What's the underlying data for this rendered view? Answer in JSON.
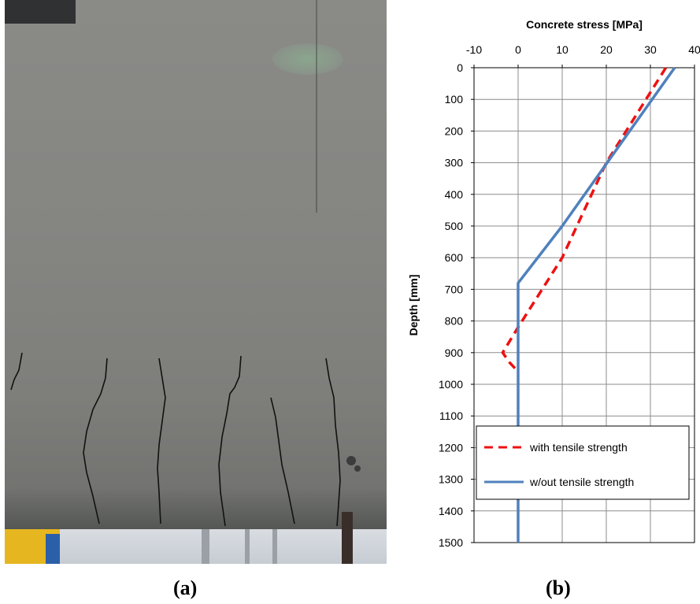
{
  "panels": {
    "a_label": "(a)",
    "b_label": "(b)"
  },
  "chart_data": {
    "type": "line",
    "xlabel": "Concrete stress [MPa]",
    "ylabel": "Depth [mm]",
    "xlim": [
      -10,
      40
    ],
    "ylim": [
      0,
      1500
    ],
    "x_axis_position": "top",
    "y_axis_inverted": true,
    "grid": true,
    "legend_position": "bottom-inside",
    "xticks": [
      "-10",
      "0",
      "10",
      "20",
      "30",
      "40"
    ],
    "yticks": [
      "0",
      "100",
      "200",
      "300",
      "400",
      "500",
      "600",
      "700",
      "800",
      "900",
      "1000",
      "1100",
      "1200",
      "1300",
      "1400",
      "1500"
    ],
    "series": [
      {
        "name": "with tensile strength",
        "color": "#ee1111",
        "style": "dashed",
        "points": [
          [
            33.5,
            0
          ],
          [
            20,
            300
          ],
          [
            10,
            600
          ],
          [
            0,
            820
          ],
          [
            -3.5,
            900
          ],
          [
            -2,
            930
          ],
          [
            0,
            960
          ]
        ]
      },
      {
        "name": "w/out tensile strength",
        "color": "#4f81bd",
        "style": "solid",
        "points": [
          [
            35.5,
            0
          ],
          [
            10,
            500
          ],
          [
            0,
            680
          ],
          [
            0,
            1500
          ]
        ]
      }
    ]
  }
}
